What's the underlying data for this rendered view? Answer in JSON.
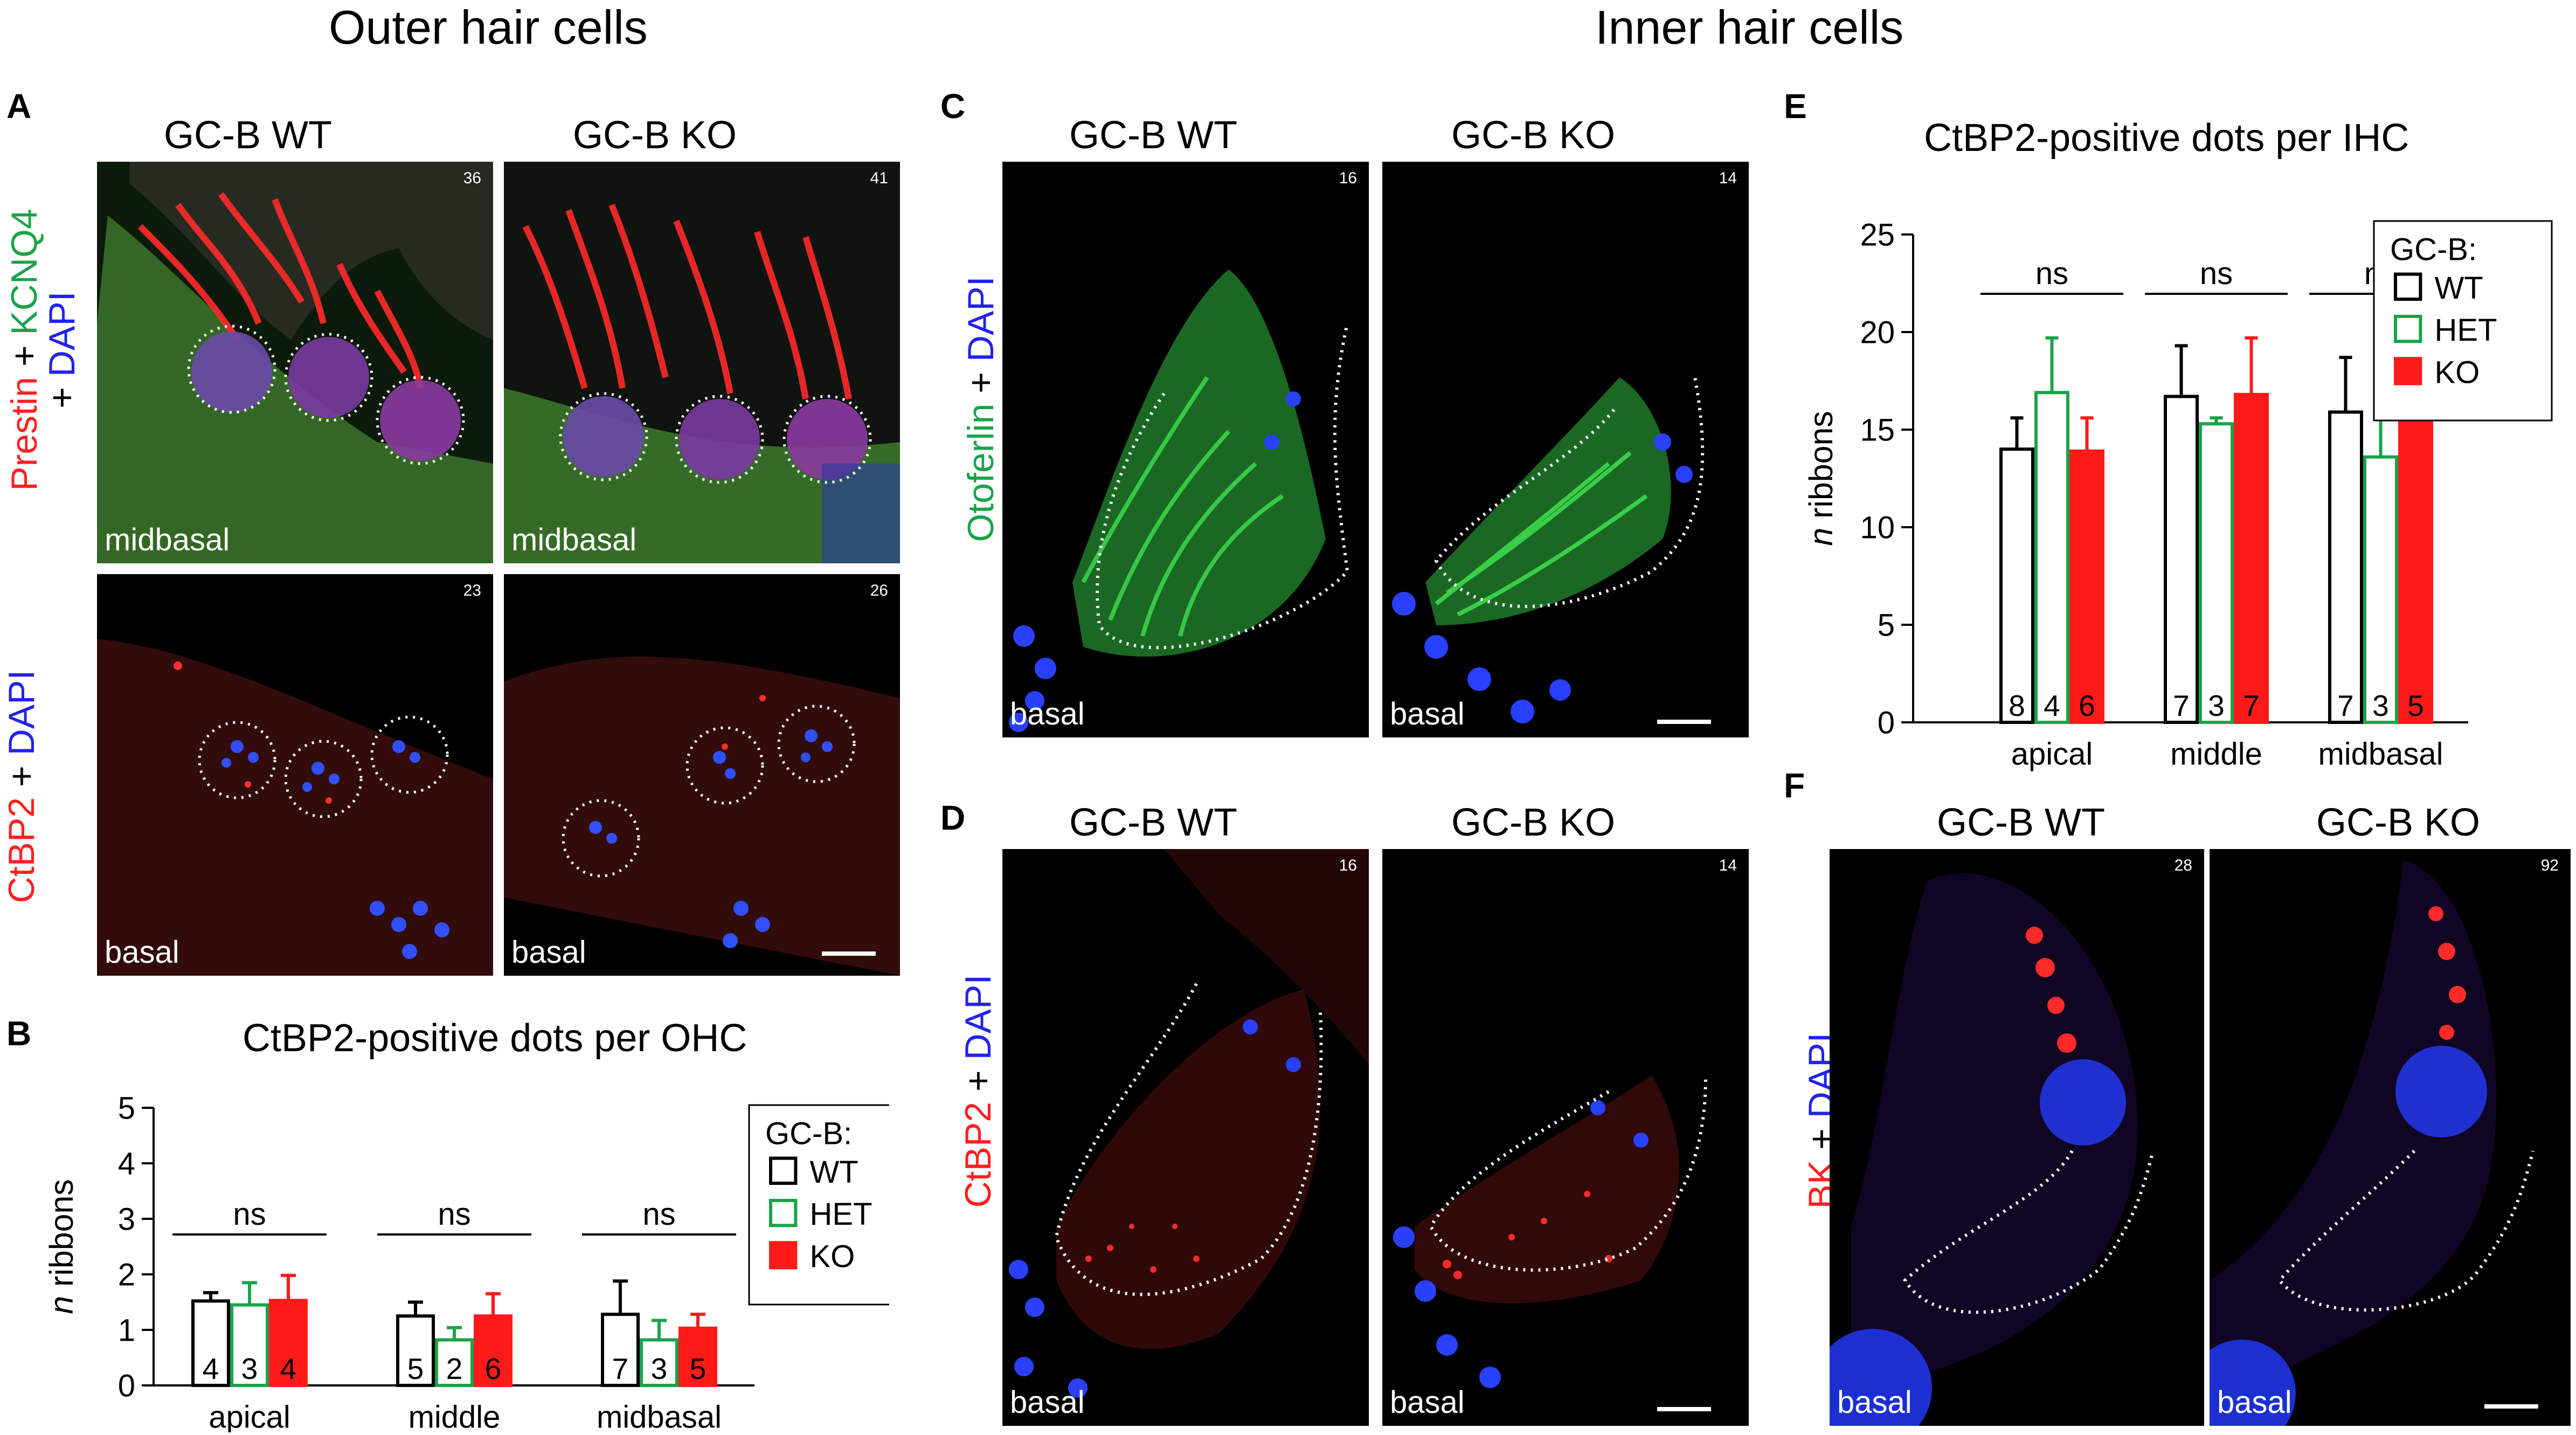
{
  "sections": {
    "outer": "Outer hair cells",
    "inner": "Inner hair cells"
  },
  "panels": {
    "A": "A",
    "B": "B",
    "C": "C",
    "D": "D",
    "E": "E",
    "F": "F"
  },
  "groups": {
    "wt": "GC-B WT",
    "ko": "GC-B KO"
  },
  "stains": {
    "a_top": [
      "Prestin",
      " + ",
      "KCNQ4",
      " + ",
      "DAPI"
    ],
    "a_top_colors": [
      "#ff2020",
      "#000000",
      "#1aa34a",
      "#000000",
      "#2222ee"
    ],
    "a_bottom": [
      "CtBP2",
      " + ",
      "DAPI"
    ],
    "c": [
      "Otoferlin",
      " + ",
      "DAPI"
    ],
    "d": [
      "CtBP2",
      " + ",
      "DAPI"
    ],
    "f": [
      "BK",
      " + ",
      "DAPI"
    ]
  },
  "micrographs": {
    "a_wt_top": {
      "region": "midbasal",
      "num": "36"
    },
    "a_ko_top": {
      "region": "midbasal",
      "num": "41"
    },
    "a_wt_bot": {
      "region": "basal",
      "num": "23"
    },
    "a_ko_bot": {
      "region": "basal",
      "num": "26"
    },
    "c_wt": {
      "region": "basal",
      "num": "16"
    },
    "c_ko": {
      "region": "basal",
      "num": "14"
    },
    "d_wt": {
      "region": "basal",
      "num": "16"
    },
    "d_ko": {
      "region": "basal",
      "num": "14"
    },
    "f_wt": {
      "region": "basal",
      "num": "28"
    },
    "f_ko": {
      "region": "basal",
      "num": "92"
    }
  },
  "chart_data": [
    {
      "id": "B",
      "type": "bar",
      "title": "CtBP2-positive dots per OHC",
      "ylabel_italic": "n",
      "ylabel_rest": " ribbons",
      "ylim": [
        0,
        5
      ],
      "yticks": [
        0,
        1,
        2,
        3,
        4,
        5
      ],
      "categories": [
        "apical",
        "middle",
        "midbasal"
      ],
      "legend_title": "GC-B:",
      "legend_position": "top-right",
      "series": [
        {
          "name": "WT",
          "color": "#000000",
          "fill": "none",
          "values": [
            1.52,
            1.25,
            1.28
          ],
          "err": [
            0.15,
            0.25,
            0.6
          ],
          "n": [
            "4",
            "5",
            "7"
          ]
        },
        {
          "name": "HET",
          "color": "#1aa34a",
          "fill": "none",
          "values": [
            1.45,
            0.82,
            0.82
          ],
          "err": [
            0.4,
            0.22,
            0.35
          ],
          "n": [
            "3",
            "2",
            "3"
          ]
        },
        {
          "name": "KO",
          "color": "#ff1a1a",
          "fill": "#ff1a1a",
          "values": [
            1.53,
            1.25,
            1.03
          ],
          "err": [
            0.45,
            0.4,
            0.25
          ],
          "n": [
            "4",
            "6",
            "5"
          ]
        }
      ],
      "significance": [
        "ns",
        "ns",
        "ns"
      ]
    },
    {
      "id": "E",
      "type": "bar",
      "title": "CtBP2-positive dots per IHC",
      "ylabel_italic": "n",
      "ylabel_rest": " ribbons",
      "ylim": [
        0,
        25
      ],
      "yticks": [
        0,
        5,
        10,
        15,
        20,
        25
      ],
      "categories": [
        "apical",
        "middle",
        "midbasal"
      ],
      "legend_title": "GC-B:",
      "legend_position": "top-right",
      "series": [
        {
          "name": "WT",
          "color": "#000000",
          "fill": "none",
          "values": [
            14.0,
            16.7,
            15.9
          ],
          "err": [
            1.6,
            2.6,
            2.8
          ],
          "n": [
            "8",
            "7",
            "7"
          ]
        },
        {
          "name": "HET",
          "color": "#1aa34a",
          "fill": "none",
          "values": [
            16.9,
            15.3,
            13.6
          ],
          "err": [
            2.8,
            0.3,
            3.9
          ],
          "n": [
            "4",
            "3",
            "3"
          ]
        },
        {
          "name": "KO",
          "color": "#ff1a1a",
          "fill": "#ff1a1a",
          "values": [
            13.9,
            16.8,
            16.9
          ],
          "err": [
            1.7,
            2.9,
            1.9
          ],
          "n": [
            "6",
            "7",
            "5"
          ]
        }
      ],
      "significance": [
        "ns",
        "ns",
        "ns"
      ]
    }
  ]
}
